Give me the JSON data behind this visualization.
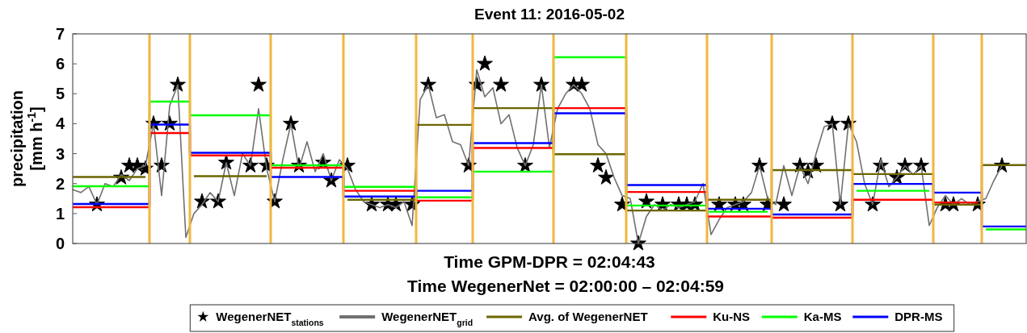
{
  "chart_data": {
    "type": "line",
    "title": "Event 11: 2016-05-02",
    "xlabel": "Time GPM-DPR = 02:04:43",
    "ylabel": "precipitation [mm h$^{-1}$]",
    "annotations": [
      "Time WegenerNet =  02:00:00 – 02:04:59"
    ],
    "categories": [
      null,
      null,
      null,
      null,
      null,
      null,
      null,
      null,
      null,
      null,
      null,
      null,
      null,
      null,
      null,
      null,
      null,
      null,
      null,
      null,
      null,
      null,
      null,
      null,
      null,
      null,
      null,
      null,
      null,
      null,
      null,
      null,
      null,
      null,
      null,
      null,
      null,
      null,
      null,
      null,
      null,
      null,
      null,
      null,
      null,
      null,
      null,
      null,
      null,
      null,
      null,
      null,
      null,
      null,
      null,
      null,
      null,
      null,
      null,
      null,
      null,
      null,
      null,
      null,
      null,
      null,
      null,
      null,
      null,
      null,
      null,
      null,
      null,
      null,
      null,
      null,
      null,
      null,
      null,
      null,
      null,
      null,
      null,
      null,
      null,
      null,
      null,
      null,
      null,
      null,
      null,
      null,
      null,
      null,
      null,
      null,
      null,
      null,
      null,
      null,
      null,
      null,
      null,
      null,
      null,
      null,
      null,
      null,
      null,
      null,
      null,
      null,
      null,
      null,
      null,
      null,
      null,
      null,
      null
    ],
    "ylim": [
      0,
      7
    ],
    "yticks": [
      0,
      1,
      2,
      3,
      4,
      5,
      6,
      7
    ],
    "tick_labels": "y",
    "legend": "bottom",
    "series": [
      {
        "name": "WegenerNET$_{stations}$",
        "type": "scatter",
        "marker": "star",
        "color": "#000000",
        "values": [
          null,
          null,
          null,
          1.3,
          null,
          null,
          2.2,
          2.6,
          2.6,
          2.5,
          4.0,
          2.6,
          4.0,
          5.3,
          null,
          null,
          1.4,
          null,
          1.4,
          2.7,
          null,
          null,
          2.6,
          5.3,
          2.6,
          1.4,
          null,
          4.0,
          2.6,
          null,
          null,
          2.7,
          2.1,
          null,
          2.6,
          null,
          null,
          1.3,
          null,
          1.3,
          1.3,
          null,
          1.3,
          null,
          5.3,
          null,
          null,
          null,
          null,
          2.6,
          5.3,
          6.0,
          null,
          5.3,
          null,
          null,
          2.6,
          null,
          5.3,
          null,
          null,
          null,
          5.3,
          5.3,
          null,
          2.6,
          2.2,
          null,
          1.3,
          null,
          0,
          1.4,
          null,
          1.3,
          null,
          1.3,
          1.3,
          1.3,
          null,
          null,
          1.3,
          null,
          1.3,
          1.3,
          null,
          2.6,
          1.3,
          null,
          1.3,
          null,
          2.6,
          2.4,
          2.6,
          null,
          4.0,
          1.3,
          4.0,
          null,
          null,
          1.3,
          2.6,
          null,
          2.2,
          2.6,
          null,
          2.6,
          null,
          null,
          1.3,
          1.3,
          null,
          null,
          1.3,
          null,
          null,
          2.6,
          null,
          null,
          null
        ]
      },
      {
        "name": "WegenerNET$_{grid}$",
        "type": "line",
        "color": "#707070",
        "values": [
          1.8,
          1.7,
          1.9,
          1.3,
          2.0,
          1.9,
          2.3,
          2.1,
          2.5,
          2.6,
          4.0,
          1.6,
          4.6,
          5.3,
          0.2,
          1.0,
          1.3,
          1.7,
          1.4,
          2.7,
          1.6,
          3.0,
          2.6,
          4.5,
          2.5,
          1.4,
          2.8,
          4.0,
          2.5,
          3.4,
          2.4,
          3.0,
          2.1,
          2.8,
          2.5,
          1.8,
          1.4,
          1.3,
          1.2,
          1.3,
          1.2,
          1.4,
          0.6,
          4.8,
          5.3,
          4.2,
          4.3,
          3.4,
          3.3,
          2.6,
          5.8,
          4.9,
          5.2,
          4.0,
          4.3,
          3.2,
          2.6,
          3.3,
          5.3,
          3.2,
          4.5,
          5.0,
          5.3,
          5.0,
          4.5,
          3.3,
          3.0,
          2.2,
          1.6,
          1.5,
          0,
          0.9,
          1.3,
          1.1,
          1.3,
          1.2,
          1.3,
          1.4,
          2.0,
          0.3,
          0.8,
          1.2,
          1.3,
          1.4,
          1.7,
          2.6,
          1.5,
          1.3,
          2.6,
          1.6,
          2.6,
          2.0,
          3.0,
          3.9,
          4.0,
          1.3,
          4.0,
          3.4,
          2.0,
          1.3,
          2.8,
          1.9,
          2.2,
          2.6,
          2.3,
          2.6,
          0.6,
          1.2,
          1.6,
          1.3,
          1.5,
          1.3,
          1.4,
          1.5,
          2.1,
          2.6,
          null,
          null,
          null
        ]
      },
      {
        "name": "Avg. of WegenerNET",
        "type": "step",
        "color": "#6b6600",
        "values": [
          2.22,
          2.22,
          2.22,
          2.22,
          2.22,
          2.22,
          2.22,
          2.22,
          2.22,
          2.22,
          null,
          null,
          null,
          null,
          null,
          2.25,
          2.25,
          2.25,
          2.25,
          2.25,
          2.25,
          2.25,
          2.25,
          2.25,
          2.25,
          null,
          null,
          null,
          null,
          null,
          null,
          null,
          null,
          null,
          1.46,
          1.46,
          1.46,
          1.46,
          1.46,
          1.46,
          1.46,
          1.46,
          1.46,
          3.96,
          3.96,
          3.96,
          3.96,
          3.96,
          3.96,
          3.96,
          4.52,
          4.52,
          4.52,
          4.52,
          4.52,
          4.52,
          4.52,
          4.52,
          4.52,
          4.52,
          2.98,
          2.98,
          2.98,
          2.98,
          2.98,
          2.98,
          2.98,
          2.98,
          2.98,
          1.1,
          1.1,
          1.1,
          1.1,
          1.1,
          1.1,
          1.1,
          1.1,
          1.1,
          1.1,
          1.46,
          1.46,
          1.46,
          1.46,
          1.46,
          1.46,
          1.46,
          1.46,
          2.45,
          2.45,
          2.45,
          2.45,
          2.45,
          2.45,
          2.45,
          2.45,
          2.45,
          2.45,
          2.32,
          2.32,
          2.32,
          2.32,
          2.32,
          2.32,
          2.32,
          2.32,
          2.32,
          2.32,
          1.3,
          1.3,
          1.3,
          1.3,
          1.3,
          1.3,
          2.62,
          2.62,
          2.62,
          2.62,
          2.62,
          2.62
        ]
      },
      {
        "name": "Ku-NS",
        "type": "step",
        "color": "#ff0000",
        "values": [
          1.21,
          1.21,
          1.21,
          1.21,
          1.21,
          1.21,
          1.21,
          1.21,
          1.21,
          1.21,
          3.69,
          3.69,
          3.69,
          3.69,
          3.69,
          2.94,
          2.94,
          2.94,
          2.94,
          2.94,
          2.94,
          2.94,
          2.94,
          2.94,
          2.94,
          2.53,
          2.53,
          2.53,
          2.53,
          2.53,
          2.53,
          2.53,
          2.53,
          2.53,
          1.76,
          1.76,
          1.76,
          1.76,
          1.76,
          1.76,
          1.76,
          1.76,
          1.76,
          1.43,
          1.43,
          1.43,
          1.43,
          1.43,
          1.43,
          1.43,
          3.19,
          3.19,
          3.19,
          3.19,
          3.19,
          3.19,
          3.19,
          3.19,
          3.19,
          3.19,
          4.52,
          4.52,
          4.52,
          4.52,
          4.52,
          4.52,
          4.52,
          4.52,
          4.52,
          1.72,
          1.72,
          1.72,
          1.72,
          1.72,
          1.72,
          1.72,
          1.72,
          1.72,
          1.72,
          0.9,
          0.9,
          0.9,
          0.9,
          0.9,
          0.9,
          0.9,
          0.9,
          0.86,
          0.86,
          0.86,
          0.86,
          0.86,
          0.86,
          0.86,
          0.86,
          0.86,
          0.86,
          1.46,
          1.46,
          1.46,
          1.46,
          1.46,
          1.46,
          1.46,
          1.46,
          1.46,
          1.46,
          1.37,
          1.37,
          1.37,
          1.37,
          1.37,
          1.37,
          null,
          null,
          null,
          null,
          null,
          null
        ]
      },
      {
        "name": "Ka-MS",
        "type": "step",
        "color": "#00ff00",
        "values": [
          1.91,
          1.91,
          1.91,
          1.91,
          1.91,
          1.91,
          1.91,
          1.91,
          1.91,
          1.91,
          4.74,
          4.74,
          4.74,
          4.74,
          4.74,
          4.28,
          4.28,
          4.28,
          4.28,
          4.28,
          4.28,
          4.28,
          4.28,
          4.28,
          4.28,
          2.61,
          2.61,
          2.61,
          2.61,
          2.61,
          2.61,
          2.61,
          2.61,
          2.61,
          1.89,
          1.89,
          1.89,
          1.89,
          1.89,
          1.89,
          1.89,
          1.89,
          1.89,
          1.54,
          1.54,
          1.54,
          1.54,
          1.54,
          1.54,
          1.54,
          2.4,
          2.4,
          2.4,
          2.4,
          2.4,
          2.4,
          2.4,
          2.4,
          2.4,
          2.4,
          6.22,
          6.22,
          6.22,
          6.22,
          6.22,
          6.22,
          6.22,
          6.22,
          6.22,
          1.27,
          1.27,
          1.27,
          1.27,
          1.27,
          1.27,
          1.27,
          1.27,
          1.27,
          1.27,
          1.06,
          1.06,
          1.06,
          1.06,
          1.06,
          1.06,
          1.06,
          1.06,
          null,
          null,
          null,
          null,
          null,
          null,
          null,
          null,
          null,
          null,
          1.76,
          1.76,
          1.76,
          1.76,
          1.76,
          1.76,
          1.76,
          1.76,
          1.76,
          1.76,
          null,
          null,
          null,
          null,
          null,
          null,
          0.47,
          0.47,
          0.47,
          0.47,
          0.47,
          0.47
        ]
      },
      {
        "name": "DPR-MS",
        "type": "step",
        "color": "#0000ff",
        "values": [
          1.32,
          1.32,
          1.32,
          1.32,
          1.32,
          1.32,
          1.32,
          1.32,
          1.32,
          1.32,
          3.97,
          3.97,
          3.97,
          3.97,
          3.97,
          3.03,
          3.03,
          3.03,
          3.03,
          3.03,
          3.03,
          3.03,
          3.03,
          3.03,
          3.03,
          2.22,
          2.22,
          2.22,
          2.22,
          2.22,
          2.22,
          2.22,
          2.22,
          2.22,
          1.57,
          1.57,
          1.57,
          1.57,
          1.57,
          1.57,
          1.57,
          1.57,
          1.57,
          1.76,
          1.76,
          1.76,
          1.76,
          1.76,
          1.76,
          1.76,
          3.35,
          3.35,
          3.35,
          3.35,
          3.35,
          3.35,
          3.35,
          3.35,
          3.35,
          3.35,
          4.35,
          4.35,
          4.35,
          4.35,
          4.35,
          4.35,
          4.35,
          4.35,
          4.35,
          1.95,
          1.95,
          1.95,
          1.95,
          1.95,
          1.95,
          1.95,
          1.95,
          1.95,
          1.95,
          1.16,
          1.16,
          1.16,
          1.16,
          1.16,
          1.16,
          1.16,
          1.16,
          0.97,
          0.97,
          0.97,
          0.97,
          0.97,
          0.97,
          0.97,
          0.97,
          0.97,
          0.97,
          1.99,
          1.99,
          1.99,
          1.99,
          1.99,
          1.99,
          1.99,
          1.99,
          1.99,
          1.99,
          1.7,
          1.7,
          1.7,
          1.7,
          1.7,
          1.7,
          0.57,
          0.57,
          0.57,
          0.57,
          0.57,
          0.57
        ]
      }
    ]
  }
}
